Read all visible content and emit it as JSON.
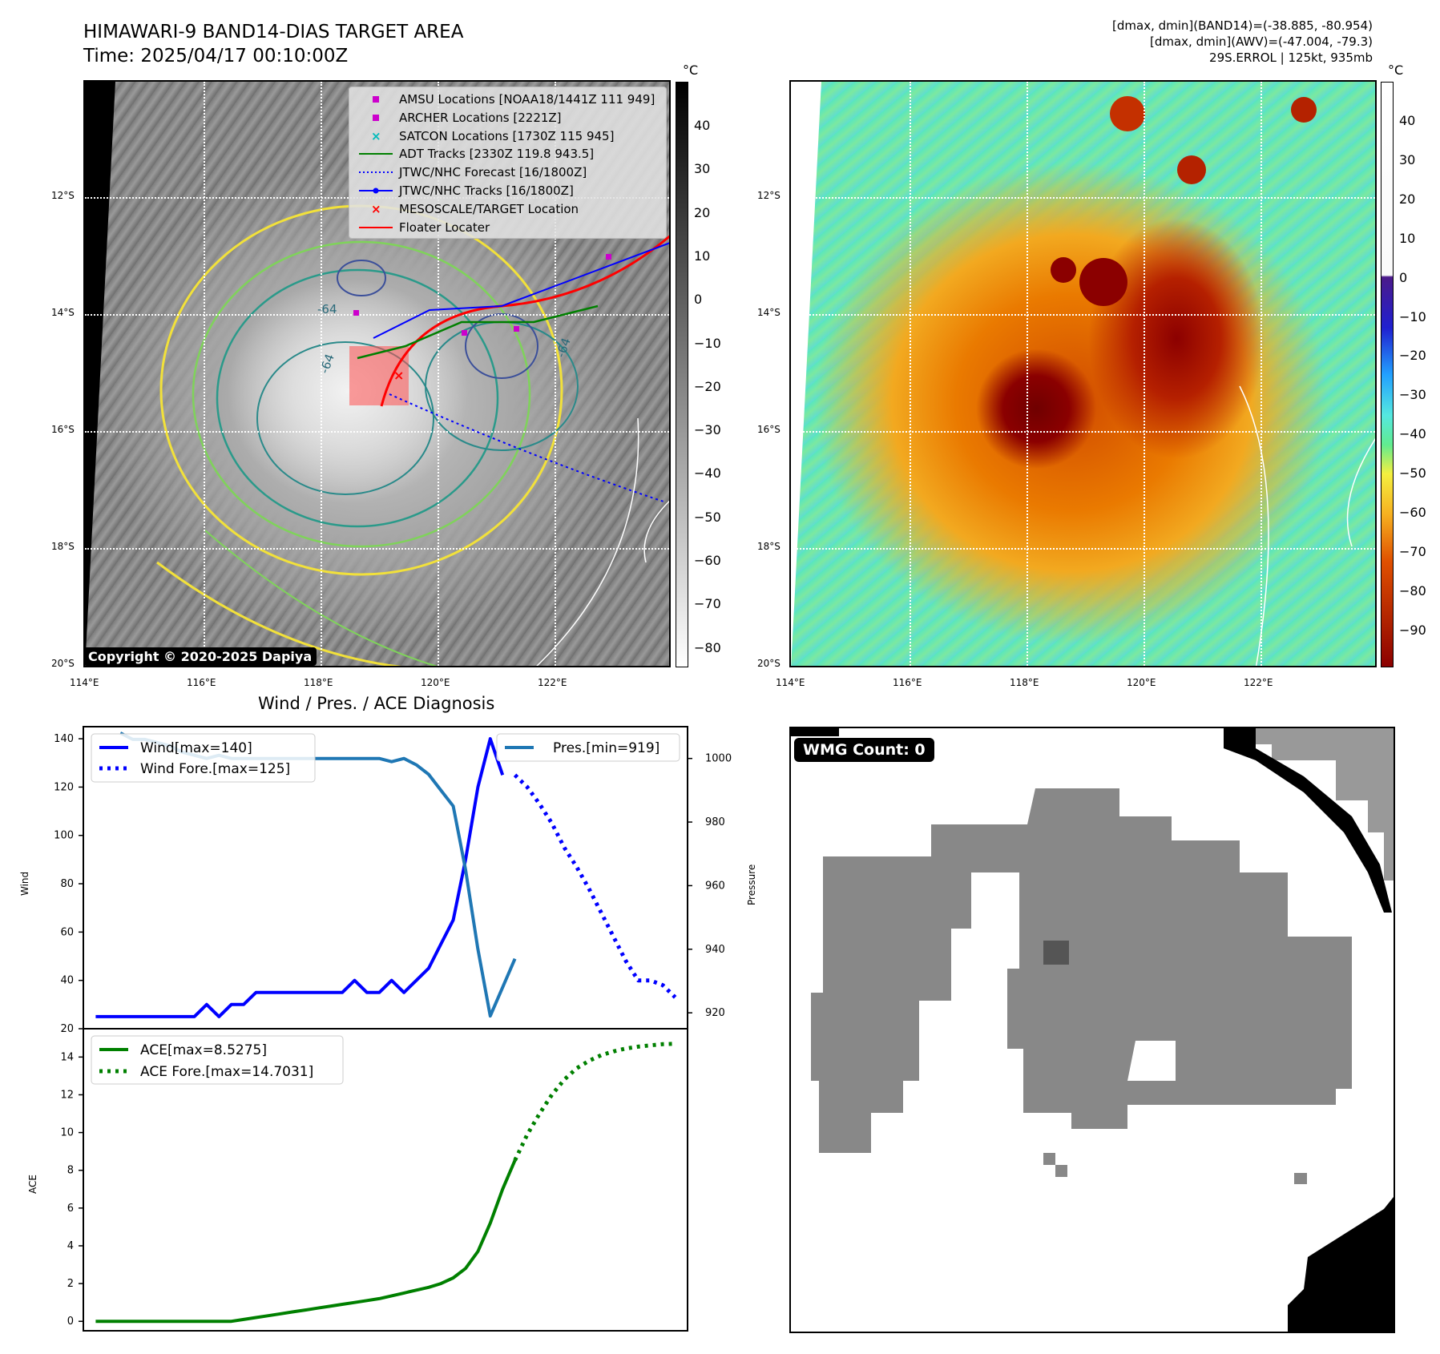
{
  "header": {
    "title_line1": "HIMAWARI-9 BAND14-DIAS TARGET AREA",
    "title_line2": "Time: 2025/04/17 00:10:00Z",
    "info_line1": "[dmax, dmin](BAND14)=(-38.885, -80.954)",
    "info_line2": "[dmax, dmin](AWV)=(-47.004, -79.3)",
    "info_line3": "29S.ERROL | 125kt, 935mb"
  },
  "map": {
    "lat_labels": [
      "12°S",
      "14°S",
      "16°S",
      "18°S",
      "20°S"
    ],
    "lon_labels": [
      "114°E",
      "116°E",
      "118°E",
      "120°E",
      "122°E"
    ],
    "contour_labels": [
      "-64",
      "-64",
      "-64"
    ],
    "copyright": "Copyright © 2020-2025 Dapiya"
  },
  "colorbar_gray": {
    "unit": "°C",
    "ticks": [
      "40",
      "30",
      "20",
      "10",
      "0",
      "−10",
      "−20",
      "−30",
      "−40",
      "−50",
      "−60",
      "−70",
      "−80"
    ]
  },
  "colorbar_color": {
    "unit": "°C",
    "ticks": [
      "40",
      "30",
      "20",
      "10",
      "0",
      "−10",
      "−20",
      "−30",
      "−40",
      "−50",
      "−60",
      "−70",
      "−80",
      "−90"
    ]
  },
  "legend": {
    "items": [
      {
        "label": "AMSU Locations [NOAA18/1441Z 111 949]",
        "color": "#cc00cc",
        "marker": "square"
      },
      {
        "label": "ARCHER Locations [2221Z]",
        "color": "#cc00cc",
        "marker": "square"
      },
      {
        "label": "SATCON Locations [1730Z 115 945]",
        "color": "#00bbbb",
        "marker": "x"
      },
      {
        "label": "ADT Tracks [2330Z 119.8 943.5]",
        "color": "#008000",
        "marker": "line"
      },
      {
        "label": "JTWC/NHC Forecast [16/1800Z]",
        "color": "#0000ff",
        "marker": "dotted"
      },
      {
        "label": "JTWC/NHC Tracks [16/1800Z]",
        "color": "#0000ff",
        "marker": "line-dot"
      },
      {
        "label": "MESOSCALE/TARGET Location",
        "color": "#ff0000",
        "marker": "x"
      },
      {
        "label": "Floater Locater",
        "color": "#ff0000",
        "marker": "line"
      }
    ]
  },
  "diagnosis": {
    "title": "Wind / Pres. / ACE Diagnosis",
    "wind_ylabel": "Wind",
    "pres_ylabel": "Pressure",
    "ace_ylabel": "ACE",
    "wind_legend": [
      "Wind[max=140]",
      "Wind Fore.[max=125]"
    ],
    "pres_legend": "Pres.[min=919]",
    "ace_legend": [
      "ACE[max=8.5275]",
      "ACE Fore.[max=14.7031]"
    ]
  },
  "wmg": {
    "label": "WMG Count: 0"
  },
  "chart_data": [
    {
      "type": "line",
      "title": "Wind / Pres. / ACE Diagnosis",
      "ylabel": "Wind",
      "ylim": [
        20,
        145
      ],
      "yticks": [
        20,
        40,
        60,
        80,
        100,
        120,
        140
      ],
      "series": [
        {
          "name": "Wind[max=140]",
          "color": "#0000ff",
          "style": "solid",
          "x": [
            0,
            1,
            2,
            3,
            4,
            5,
            6,
            7,
            8,
            9,
            10,
            11,
            12,
            13,
            14,
            15,
            16,
            17,
            18,
            19,
            20,
            21,
            22,
            23,
            24,
            25,
            26,
            27,
            28,
            29,
            30,
            31,
            32,
            33,
            34
          ],
          "values": [
            25,
            25,
            25,
            25,
            25,
            25,
            25,
            25,
            25,
            30,
            25,
            30,
            30,
            35,
            35,
            35,
            35,
            35,
            35,
            35,
            35,
            40,
            35,
            35,
            40,
            35,
            40,
            45,
            55,
            65,
            90,
            120,
            140,
            125,
            null
          ]
        },
        {
          "name": "Wind Fore.[max=125]",
          "color": "#0000ff",
          "style": "dotted",
          "x": [
            34,
            35,
            36,
            37,
            38,
            39,
            40,
            41,
            42,
            43,
            44,
            45,
            46,
            47
          ],
          "values": [
            125,
            120,
            113,
            105,
            95,
            87,
            78,
            68,
            58,
            48,
            40,
            40,
            38,
            33
          ]
        }
      ]
    },
    {
      "type": "line",
      "ylabel": "Pressure",
      "ylim": [
        915,
        1010
      ],
      "yticks": [
        920,
        940,
        960,
        980,
        1000
      ],
      "series": [
        {
          "name": "Pres.[min=919]",
          "color": "#1f77b4",
          "style": "solid",
          "x": [
            2,
            3,
            4,
            5,
            6,
            7,
            8,
            9,
            10,
            11,
            12,
            13,
            14,
            15,
            16,
            17,
            18,
            19,
            20,
            21,
            22,
            23,
            24,
            25,
            26,
            27,
            28,
            29,
            30,
            31,
            32,
            33,
            34
          ],
          "values": [
            1008,
            1006,
            1006,
            1005,
            1004,
            1002,
            1001,
            1000,
            1001,
            1000,
            1000,
            1000,
            1000,
            1000,
            1000,
            1000,
            1000,
            1000,
            1000,
            1000,
            1000,
            1000,
            999,
            1000,
            998,
            995,
            990,
            985,
            965,
            940,
            919,
            928,
            937
          ]
        }
      ]
    },
    {
      "type": "line",
      "ylabel": "ACE",
      "ylim": [
        -0.5,
        15.5
      ],
      "yticks": [
        0,
        2,
        4,
        6,
        8,
        10,
        12,
        14
      ],
      "series": [
        {
          "name": "ACE[max=8.5275]",
          "color": "#008000",
          "style": "solid",
          "x": [
            0,
            1,
            2,
            3,
            4,
            5,
            6,
            7,
            8,
            9,
            10,
            11,
            12,
            13,
            14,
            15,
            16,
            17,
            18,
            19,
            20,
            21,
            22,
            23,
            24,
            25,
            26,
            27,
            28,
            29,
            30,
            31,
            32,
            33,
            34
          ],
          "values": [
            0,
            0,
            0,
            0,
            0,
            0,
            0,
            0,
            0,
            0,
            0,
            0,
            0.1,
            0.2,
            0.3,
            0.4,
            0.5,
            0.6,
            0.7,
            0.8,
            0.9,
            1.0,
            1.1,
            1.2,
            1.35,
            1.5,
            1.65,
            1.8,
            2.0,
            2.3,
            2.8,
            3.7,
            5.2,
            7.0,
            8.5275
          ]
        },
        {
          "name": "ACE Fore.[max=14.7031]",
          "color": "#008000",
          "style": "dotted",
          "x": [
            34,
            35,
            36,
            37,
            38,
            39,
            40,
            41,
            42,
            43,
            44,
            45,
            46,
            47
          ],
          "values": [
            8.5275,
            9.9,
            11.0,
            12.0,
            12.8,
            13.4,
            13.8,
            14.1,
            14.3,
            14.45,
            14.55,
            14.62,
            14.68,
            14.7031
          ]
        }
      ]
    }
  ]
}
